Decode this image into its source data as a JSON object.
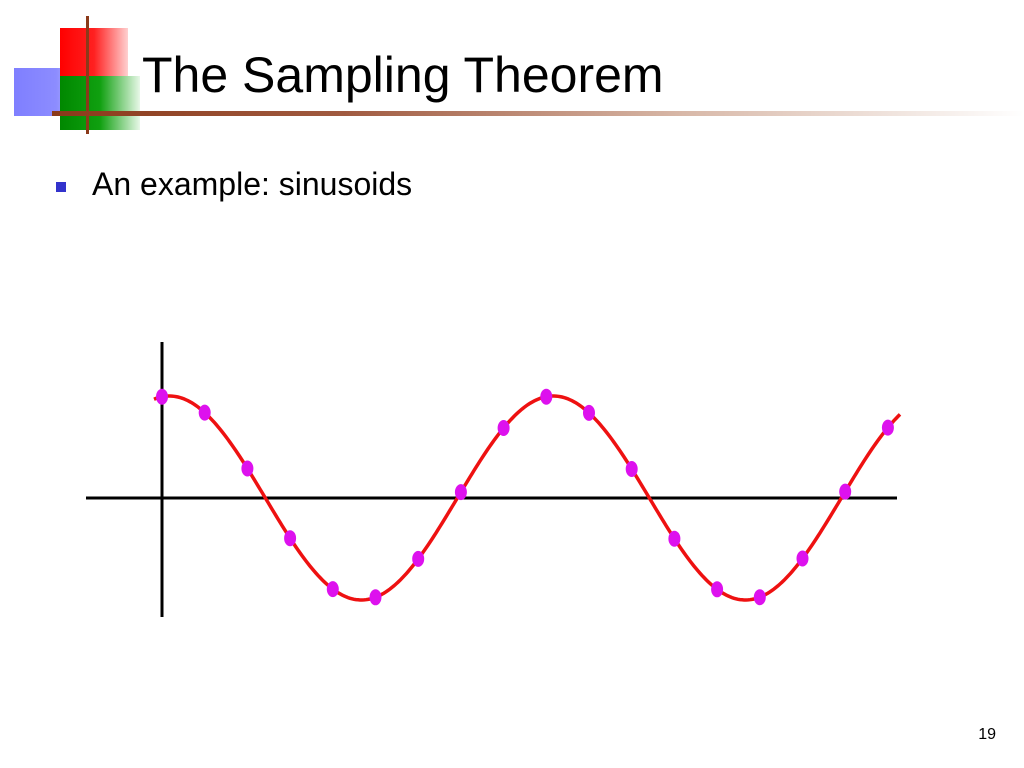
{
  "slide": {
    "title": "The Sampling Theorem",
    "bullet": "An example: sinusoids",
    "page_number": "19"
  },
  "colors": {
    "curve": "#ee1111",
    "sample": "#dd11ee",
    "axis": "#000000",
    "bullet": "#3333cc"
  },
  "diagram": {
    "signal_type": "sinusoid",
    "sample_count": 18
  }
}
